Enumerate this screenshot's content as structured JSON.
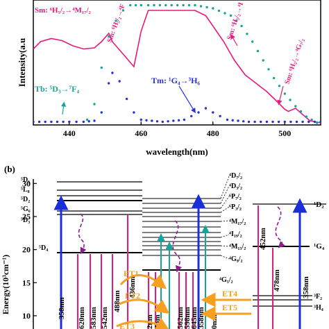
{
  "panel_a": {
    "ylabel": "Intensity(a.u",
    "xlabel": "wavelength(nm)",
    "x_ticks": [
      "440",
      "460",
      "480",
      "500"
    ],
    "annotations": {
      "sm_1": "Sm: ⁶H₅/₂→⁴M₁₇/₂",
      "sm_2": "Sm: ⁶H₅/₂→⁴F",
      "sm_3": "Sm: ⁶H₅/₂→⁴I",
      "sm_4": "Sm: ⁶H₅/₂→⁴G₇/₂",
      "tb": "Tb: ⁵D₃→⁷F₄",
      "tm": "Tm: ¹G₄→³H₆"
    },
    "colors": {
      "sm": "#e8197d",
      "tb": "#1aa39a",
      "tm": "#2a32d6",
      "axis": "#000000"
    }
  },
  "chart_data": {
    "type": "line",
    "xlabel": "wavelength(nm)",
    "ylabel": "Intensity(a.u",
    "xlim": [
      430,
      510
    ],
    "grid": false,
    "series": [
      {
        "name": "Sm",
        "style": "solid",
        "x": [
          430,
          432,
          435,
          438,
          441,
          444,
          447,
          449,
          451,
          452,
          454,
          456,
          458,
          460,
          462,
          470,
          475,
          478,
          480,
          483,
          486,
          489,
          492,
          495,
          498,
          500,
          501,
          503,
          505,
          507,
          510
        ],
        "y": [
          0.73,
          0.8,
          0.83,
          0.81,
          0.76,
          0.73,
          0.74,
          0.8,
          0.88,
          0.8,
          0.72,
          0.64,
          0.56,
          0.9,
          1.1,
          1.1,
          1.1,
          1.05,
          0.95,
          0.8,
          0.62,
          0.48,
          0.4,
          0.32,
          0.22,
          0.15,
          0.13,
          0.16,
          0.1,
          0.04,
          0.02
        ]
      },
      {
        "name": "Tb",
        "style": "dotted",
        "x": [
          445,
          447,
          449,
          451,
          453,
          455,
          457,
          460,
          462,
          475,
          480,
          485,
          488,
          491,
          494,
          497,
          500,
          503,
          506,
          509
        ],
        "y": [
          0.05,
          0.2,
          0.55,
          0.85,
          1.0,
          1.1,
          1.15,
          1.15,
          1.15,
          1.15,
          1.12,
          1.05,
          0.95,
          0.8,
          0.62,
          0.45,
          0.3,
          0.18,
          0.08,
          0.02
        ]
      },
      {
        "name": "Tm",
        "style": "dotted",
        "x": [
          430,
          440,
          444,
          447,
          449,
          451,
          452,
          454,
          456,
          458,
          460,
          466,
          472,
          476,
          478,
          480,
          484,
          490,
          500,
          510
        ],
        "y": [
          0.03,
          0.03,
          0.03,
          0.04,
          0.12,
          0.4,
          0.5,
          0.42,
          0.25,
          0.12,
          0.05,
          0.03,
          0.05,
          0.12,
          0.16,
          0.12,
          0.05,
          0.03,
          0.03,
          0.03
        ]
      }
    ]
  },
  "panel_b": {
    "label": "(b)",
    "ylabel": "Energy(10³cm⁻¹)",
    "y_ticks": [
      "30",
      "25",
      "20",
      "15",
      "10"
    ],
    "left_levels": [
      "⁵D₁",
      "⁵L₈",
      "⁵D₂",
      "⁵G₆",
      "⁵D₃",
      "⁵D₄"
    ],
    "right_levels": [
      "⁴D₇/₂",
      "⁴D₃/₂",
      "⁶P₇/₂",
      "⁶P₃/₂",
      "⁴M₁₇/₂",
      "⁴I₁₉/₂",
      "⁴M₁₅/₂",
      "⁴G₉/₂",
      "⁴G₅/₂"
    ],
    "tm_levels": [
      "¹D₂",
      "¹G₄",
      "³F₂",
      "³H₄"
    ],
    "tb_emission": [
      "620nm",
      "583nm",
      "542nm",
      "488nm",
      "436nm"
    ],
    "sm_emission": [
      "2nm",
      "4nm",
      "562nm",
      "598nm",
      "645nm",
      "0nm"
    ],
    "tm_emission": [
      "452nm",
      "478nm"
    ],
    "excitation": "358nm",
    "et_labels": [
      "ET1",
      "ET2",
      "ET3",
      "ET4",
      "ET5"
    ],
    "colors": {
      "magenta": "#e8197d",
      "blue": "#1b2fd8",
      "teal": "#16a39a",
      "orange": "#f5a020",
      "purple": "#8a1f8c"
    }
  }
}
